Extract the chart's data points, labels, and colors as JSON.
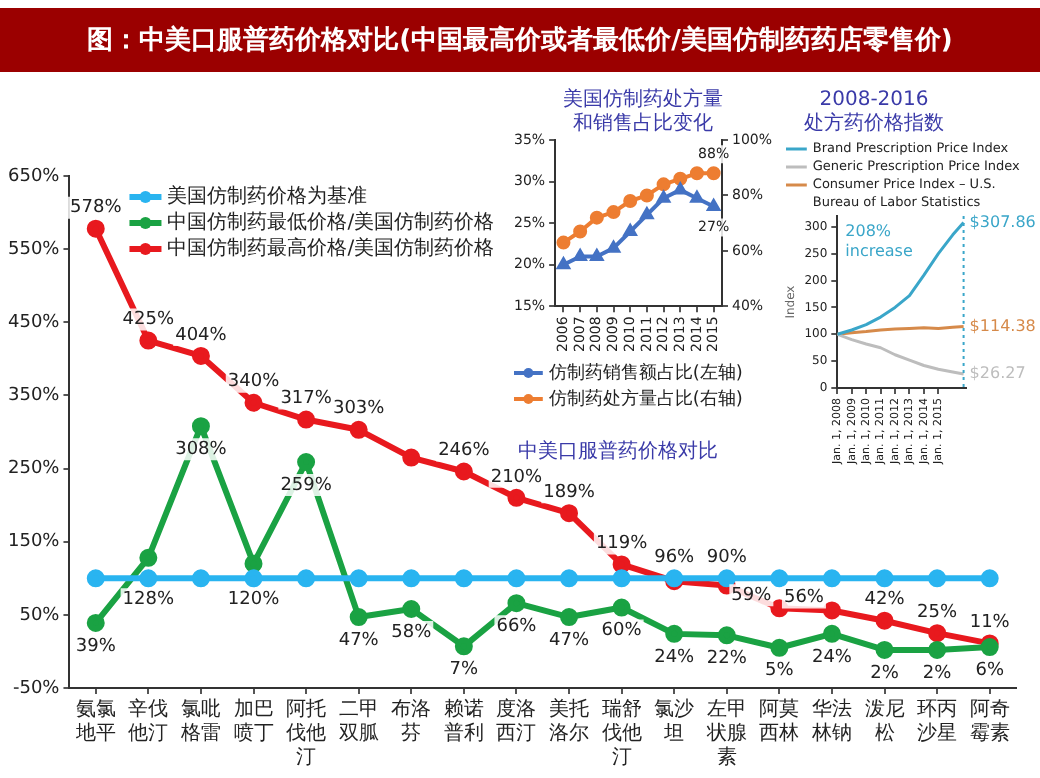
{
  "chart_data": [
    {
      "type": "line",
      "title": "图：中美口服普药价格对比(中国最高价或者最低价/美国仿制药药店零售价)",
      "categories": [
        "氨氯地平",
        "辛伐他汀",
        "氯吡格雷",
        "加巴喷丁",
        "阿托伐他汀",
        "二甲双胍",
        "布洛芬",
        "赖诺普利",
        "度洛西汀",
        "美托洛尔",
        "瑞舒伐他汀",
        "氯沙坦",
        "左甲状腺素",
        "阿莫西林",
        "华法林钠",
        "泼尼松",
        "环丙沙星",
        "阿奇霉素"
      ],
      "series": [
        {
          "name": "美国仿制药价格为基准",
          "color": "#29b4f0",
          "values": [
            100,
            100,
            100,
            100,
            100,
            100,
            100,
            100,
            100,
            100,
            100,
            100,
            100,
            100,
            100,
            100,
            100,
            100
          ]
        },
        {
          "name": "中国仿制药最低价格/美国仿制药价格",
          "color": "#1aa243",
          "values": [
            39,
            128,
            308,
            120,
            259,
            47,
            58,
            7,
            66,
            47,
            60,
            24,
            22,
            5,
            24,
            2,
            2,
            6
          ],
          "value_labels": [
            "39%",
            "128%",
            "308%",
            "120%",
            "259%",
            "47%",
            "58%",
            "7%",
            "66%",
            "47%",
            "60%",
            "24%",
            "22%",
            "5%",
            "24%",
            "2%",
            "2%",
            "6%"
          ]
        },
        {
          "name": "中国仿制药最高价格/美国仿制药价格",
          "color": "#e8191e",
          "values": [
            578,
            425,
            404,
            340,
            317,
            303,
            265,
            246,
            210,
            189,
            119,
            96,
            90,
            59,
            56,
            42,
            25,
            11
          ],
          "value_labels": [
            "578%",
            "425%",
            "404%",
            "340%",
            "317%",
            "303%",
            null,
            "246%",
            "210%",
            "189%",
            "119%",
            "96%",
            "90%",
            "59%",
            "56%",
            "42%",
            "25%",
            "11%"
          ]
        }
      ],
      "ylim": [
        -50,
        650
      ],
      "yticks": [
        {
          "value": -50,
          "label": "-50%"
        },
        {
          "value": 50,
          "label": "50%"
        },
        {
          "value": 150,
          "label": "150%"
        },
        {
          "value": 250,
          "label": "250%"
        },
        {
          "value": 350,
          "label": "350%"
        },
        {
          "value": 450,
          "label": "450%"
        },
        {
          "value": 550,
          "label": "550%"
        },
        {
          "value": 650,
          "label": "650%"
        }
      ],
      "legend": "top left",
      "marker": "circle"
    },
    {
      "type": "line",
      "title": "美国仿制药处方量和销售占比变化",
      "categories": [
        "2006",
        "2007",
        "2008",
        "2009",
        "2010",
        "2011",
        "2012",
        "2013",
        "2014",
        "2015"
      ],
      "series": [
        {
          "name": "仿制药销售额占比(左轴)",
          "color": "#4472c4",
          "marker": "triangle",
          "values": [
            20,
            21,
            21,
            22,
            24,
            26,
            28,
            29,
            28,
            27
          ],
          "value_labels": [
            null,
            null,
            null,
            null,
            null,
            null,
            null,
            null,
            null,
            "27%"
          ]
        },
        {
          "name": "仿制药处方量占比(右轴)",
          "color": "#ed7d31",
          "marker": "circle",
          "axis": "y2",
          "values": [
            63,
            67,
            72,
            74,
            78,
            80,
            84,
            86,
            88,
            88
          ],
          "value_labels": [
            null,
            null,
            null,
            null,
            null,
            null,
            null,
            null,
            null,
            "88%"
          ]
        }
      ],
      "ylim": [
        15,
        35
      ],
      "yticks": [
        {
          "value": 15,
          "label": "15%"
        },
        {
          "value": 20,
          "label": "20%"
        },
        {
          "value": 25,
          "label": "25%"
        },
        {
          "value": 30,
          "label": "30%"
        },
        {
          "value": 35,
          "label": "35%"
        }
      ],
      "y2lim": [
        40,
        100
      ],
      "y2ticks": [
        {
          "value": 40,
          "label": "40%"
        },
        {
          "value": 60,
          "label": "60%"
        },
        {
          "value": 80,
          "label": "80%"
        },
        {
          "value": 100,
          "label": "100%"
        }
      ],
      "legend": "bottom",
      "annotations": [
        "中美口服普药价格对比"
      ]
    },
    {
      "type": "line",
      "title": "2008-2016 处方药价格指数",
      "ylabel": "Index",
      "series": [
        {
          "name": "Brand Prescription Price Index",
          "color": "#3aa6c9",
          "x": [
            "2008-01",
            "2009-01",
            "2010-01",
            "2011-01",
            "2012-01",
            "2013-01",
            "2014-01",
            "2015-01",
            "2016-01",
            "2016-10"
          ],
          "values": [
            100,
            108,
            118,
            132,
            150,
            172,
            210,
            250,
            285,
            307.86
          ],
          "value_labels": [
            null,
            null,
            null,
            null,
            null,
            null,
            null,
            null,
            null,
            "$307.86"
          ]
        },
        {
          "name": "Generic Prescription Price Index",
          "color": "#bdbdbd",
          "x": [
            "2008-01",
            "2009-01",
            "2010-01",
            "2011-01",
            "2012-01",
            "2013-01",
            "2014-01",
            "2015-01",
            "2016-01",
            "2016-10"
          ],
          "values": [
            100,
            90,
            82,
            75,
            62,
            52,
            42,
            35,
            30,
            26.27
          ],
          "value_labels": [
            null,
            null,
            null,
            null,
            null,
            null,
            null,
            null,
            null,
            "$26.27"
          ]
        },
        {
          "name": "Consumer Price Index – U.S. Bureau of Labor Statistics",
          "color": "#d68a4a",
          "x": [
            "2008-01",
            "2009-01",
            "2010-01",
            "2011-01",
            "2012-01",
            "2013-01",
            "2014-01",
            "2015-01",
            "2016-01",
            "2016-10"
          ],
          "values": [
            100,
            103,
            105,
            108,
            110,
            111,
            112,
            111,
            113,
            114.38
          ],
          "value_labels": [
            null,
            null,
            null,
            null,
            null,
            null,
            null,
            null,
            null,
            "$114.38"
          ]
        }
      ],
      "xlim": [
        "2008-01",
        "2016-12"
      ],
      "xticks": [
        {
          "value": "2008-01-01",
          "label": "Jan. 1, 2008"
        },
        {
          "value": "2009-01-01",
          "label": "Jan. 1, 2009"
        },
        {
          "value": "2010-01-01",
          "label": "Jan. 1, 2010"
        },
        {
          "value": "2011-01-01",
          "label": "Jan. 1, 2011"
        },
        {
          "value": "2012-01-01",
          "label": "Jan. 1, 2012"
        },
        {
          "value": "2013-01-01",
          "label": "Jan. 1, 2013"
        },
        {
          "value": "2014-01-01",
          "label": "Jan. 1, 2014"
        },
        {
          "value": "2015-01-01",
          "label": "Jan. 1, 2015"
        }
      ],
      "ylim": [
        0,
        320
      ],
      "yticks": [
        0,
        50,
        100,
        150,
        200,
        250,
        300
      ],
      "ref_lines": [
        {
          "axis": "x",
          "value": "2016-10",
          "color": "#3aa6c9",
          "line_style": "dotted"
        }
      ],
      "annotations": [
        "208% increase"
      ],
      "legend": "top",
      "marker": "none"
    }
  ]
}
